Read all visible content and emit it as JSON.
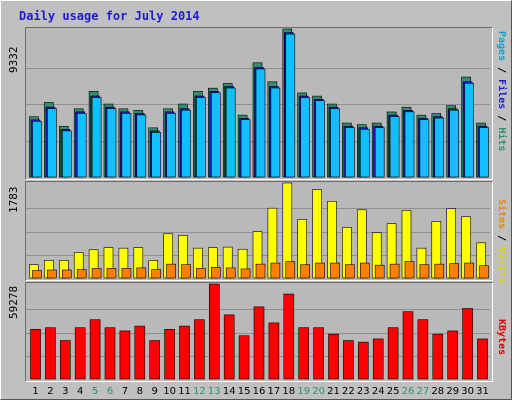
{
  "title": "Daily usage for July 2014",
  "right_labels": {
    "top": [
      {
        "text": "Pages",
        "color": "#0ea3d4"
      },
      {
        "text": " / ",
        "color": "#000000"
      },
      {
        "text": "Files",
        "color": "#1c1ccc"
      },
      {
        "text": " / ",
        "color": "#000000"
      },
      {
        "text": "Hits",
        "color": "#2f8f6f"
      }
    ],
    "middle": [
      {
        "text": "Sites",
        "color": "#e08a00"
      },
      {
        "text": " / ",
        "color": "#000000"
      },
      {
        "text": "Visits",
        "color": "#d7d700"
      }
    ],
    "bottom": [
      {
        "text": "KBytes",
        "color": "#e00000"
      }
    ]
  },
  "colors": {
    "hits": "#2f8f6f",
    "files": "#1c1ccc",
    "pages": "#11bfff",
    "visits": "#ffff00",
    "sites": "#ff8000",
    "kbytes": "#ff0000",
    "weekend_day": "#2f8f6f",
    "weekday": "#000000"
  },
  "chart_data": [
    {
      "type": "bar",
      "panel": "top",
      "ymax_label": "9332",
      "ylim": [
        0,
        9332
      ],
      "categories": [
        "1",
        "2",
        "3",
        "4",
        "5",
        "6",
        "7",
        "8",
        "9",
        "10",
        "11",
        "12",
        "13",
        "14",
        "15",
        "16",
        "17",
        "18",
        "19",
        "20",
        "21",
        "22",
        "23",
        "24",
        "25",
        "26",
        "27",
        "28",
        "29",
        "30",
        "31"
      ],
      "series": [
        {
          "name": "Hits",
          "values": [
            3800,
            4700,
            3200,
            4300,
            5400,
            4600,
            4300,
            4200,
            3100,
            4300,
            4600,
            5400,
            5600,
            5900,
            3900,
            7200,
            6000,
            9332,
            5300,
            5100,
            4600,
            3400,
            3300,
            3400,
            4100,
            4400,
            3900,
            4000,
            4500,
            6300,
            3400
          ]
        },
        {
          "name": "Files",
          "values": [
            3700,
            4500,
            3100,
            4200,
            5200,
            4500,
            4200,
            4100,
            3000,
            4200,
            4400,
            5200,
            5500,
            5800,
            3800,
            7000,
            5800,
            9200,
            5200,
            5000,
            4500,
            3300,
            3200,
            3300,
            4000,
            4300,
            3800,
            3900,
            4400,
            6100,
            3300
          ]
        },
        {
          "name": "Pages",
          "values": [
            3700,
            4500,
            3100,
            4200,
            5200,
            4500,
            4200,
            4100,
            3000,
            4200,
            4400,
            5200,
            5500,
            5800,
            3800,
            7000,
            5800,
            9200,
            5200,
            5000,
            4500,
            3300,
            3200,
            3300,
            4000,
            4300,
            3800,
            3900,
            4400,
            6100,
            3300
          ]
        }
      ]
    },
    {
      "type": "bar",
      "panel": "middle",
      "ymax_label": "1783",
      "ylim": [
        0,
        1783
      ],
      "categories": [
        "1",
        "2",
        "3",
        "4",
        "5",
        "6",
        "7",
        "8",
        "9",
        "10",
        "11",
        "12",
        "13",
        "14",
        "15",
        "16",
        "17",
        "18",
        "19",
        "20",
        "21",
        "22",
        "23",
        "24",
        "25",
        "26",
        "27",
        "28",
        "29",
        "30",
        "31"
      ],
      "series": [
        {
          "name": "Visits",
          "values": [
            250,
            330,
            330,
            480,
            530,
            570,
            560,
            570,
            330,
            830,
            800,
            560,
            570,
            580,
            540,
            870,
            1310,
            1783,
            1100,
            1660,
            1440,
            950,
            1280,
            850,
            1020,
            1270,
            560,
            1060,
            1300,
            1150,
            660
          ]
        },
        {
          "name": "Sites",
          "values": [
            140,
            150,
            150,
            160,
            180,
            180,
            180,
            190,
            160,
            260,
            250,
            180,
            200,
            190,
            170,
            260,
            280,
            310,
            250,
            280,
            280,
            250,
            280,
            240,
            260,
            310,
            250,
            260,
            270,
            280,
            230
          ]
        }
      ]
    },
    {
      "type": "bar",
      "panel": "bottom",
      "ymax_label": "59278",
      "ylim": [
        0,
        59278
      ],
      "categories": [
        "1",
        "2",
        "3",
        "4",
        "5",
        "6",
        "7",
        "8",
        "9",
        "10",
        "11",
        "12",
        "13",
        "14",
        "15",
        "16",
        "17",
        "18",
        "19",
        "20",
        "21",
        "22",
        "23",
        "24",
        "25",
        "26",
        "27",
        "28",
        "29",
        "30",
        "31"
      ],
      "series": [
        {
          "name": "KBytes",
          "values": [
            31000,
            32000,
            24000,
            32000,
            37000,
            32000,
            30000,
            33000,
            24000,
            31000,
            33000,
            37000,
            59278,
            40000,
            27000,
            45000,
            35000,
            53000,
            32000,
            32000,
            28000,
            24000,
            23000,
            25000,
            32000,
            42000,
            37000,
            28000,
            30000,
            44000,
            25000
          ]
        }
      ]
    }
  ],
  "x_axis": {
    "labels": [
      "1",
      "2",
      "3",
      "4",
      "5",
      "6",
      "7",
      "8",
      "9",
      "10",
      "11",
      "12",
      "13",
      "14",
      "15",
      "16",
      "17",
      "18",
      "19",
      "20",
      "21",
      "22",
      "23",
      "24",
      "25",
      "26",
      "27",
      "28",
      "29",
      "30",
      "31"
    ],
    "weekend": [
      5,
      6,
      12,
      13,
      19,
      20,
      26,
      27
    ]
  }
}
